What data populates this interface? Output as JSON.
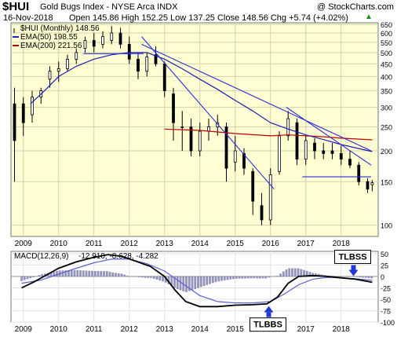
{
  "header": {
    "symbol": "$HUI",
    "name": "Gold Bugs Index - NYSE Arca INDX",
    "source": "@ StockCharts.com",
    "date": "16-Nov-2018",
    "quote": "Open 145.86  High 152.25  Low 137.25  Close 148.56  Chg +5.74 (+4.02%)",
    "up_arrow": "▲"
  },
  "colors": {
    "plot_bg": "#fefed2",
    "candle": "#000000",
    "ema50": "#2020b0",
    "ema200": "#c00000",
    "trendline": "#2b2bd8",
    "macd": "#000000",
    "signal": "#6060d0",
    "histogram": "#8080b0",
    "annotation_arrow": "#1f39d6"
  },
  "chart_data": [
    {
      "type": "candlestick",
      "scale": "log",
      "ylim": [
        90,
        660
      ],
      "y_ticks": [
        650,
        600,
        550,
        500,
        450,
        400,
        350,
        300,
        250,
        200,
        150,
        100
      ],
      "x_labels": [
        "2009",
        "2010",
        "2011",
        "2012",
        "2013",
        "2014",
        "2015",
        "2016",
        "2017",
        "2018"
      ],
      "grid": true,
      "legend": [
        {
          "label": "$HUI (Monthly) 148.56",
          "marker": "candle"
        },
        {
          "label": "EMA(50) 198.55",
          "color": "#2020b0"
        },
        {
          "label": "EMA(200) 221.56",
          "color": "#c00000"
        }
      ],
      "candles_approx": [
        {
          "t": 2008.75,
          "open": 310,
          "high": 360,
          "low": 150,
          "close": 220
        },
        {
          "t": 2009.0,
          "open": 310,
          "high": 330,
          "low": 230,
          "close": 260
        },
        {
          "t": 2009.25,
          "open": 280,
          "high": 350,
          "low": 260,
          "close": 330
        },
        {
          "t": 2009.5,
          "open": 330,
          "high": 360,
          "low": 310,
          "close": 350
        },
        {
          "t": 2009.75,
          "open": 390,
          "high": 440,
          "low": 360,
          "close": 420
        },
        {
          "t": 2010.0,
          "open": 420,
          "high": 460,
          "low": 380,
          "close": 430
        },
        {
          "t": 2010.25,
          "open": 430,
          "high": 490,
          "low": 420,
          "close": 470
        },
        {
          "t": 2010.5,
          "open": 470,
          "high": 520,
          "low": 450,
          "close": 500
        },
        {
          "t": 2010.75,
          "open": 520,
          "high": 580,
          "low": 500,
          "close": 560
        },
        {
          "t": 2011.0,
          "open": 560,
          "high": 600,
          "low": 500,
          "close": 530
        },
        {
          "t": 2011.25,
          "open": 540,
          "high": 610,
          "low": 520,
          "close": 580
        },
        {
          "t": 2011.5,
          "open": 560,
          "high": 640,
          "low": 540,
          "close": 600
        },
        {
          "t": 2011.75,
          "open": 600,
          "high": 630,
          "low": 520,
          "close": 540
        },
        {
          "t": 2012.0,
          "open": 540,
          "high": 580,
          "low": 450,
          "close": 470
        },
        {
          "t": 2012.25,
          "open": 470,
          "high": 500,
          "low": 390,
          "close": 420
        },
        {
          "t": 2012.5,
          "open": 420,
          "high": 500,
          "low": 400,
          "close": 480
        },
        {
          "t": 2012.75,
          "open": 490,
          "high": 530,
          "low": 440,
          "close": 450
        },
        {
          "t": 2013.0,
          "open": 450,
          "high": 460,
          "low": 330,
          "close": 350
        },
        {
          "t": 2013.25,
          "open": 340,
          "high": 360,
          "low": 220,
          "close": 260
        },
        {
          "t": 2013.5,
          "open": 250,
          "high": 290,
          "low": 200,
          "close": 250
        },
        {
          "t": 2013.75,
          "open": 250,
          "high": 270,
          "low": 190,
          "close": 200
        },
        {
          "t": 2014.0,
          "open": 200,
          "high": 260,
          "low": 190,
          "close": 240
        },
        {
          "t": 2014.25,
          "open": 240,
          "high": 270,
          "low": 220,
          "close": 250
        },
        {
          "t": 2014.5,
          "open": 250,
          "high": 280,
          "low": 230,
          "close": 260
        },
        {
          "t": 2014.75,
          "open": 250,
          "high": 260,
          "low": 150,
          "close": 170
        },
        {
          "t": 2015.0,
          "open": 180,
          "high": 230,
          "low": 165,
          "close": 200
        },
        {
          "t": 2015.25,
          "open": 195,
          "high": 205,
          "low": 160,
          "close": 170
        },
        {
          "t": 2015.5,
          "open": 165,
          "high": 170,
          "low": 110,
          "close": 125
        },
        {
          "t": 2015.75,
          "open": 120,
          "high": 135,
          "low": 100,
          "close": 105
        },
        {
          "t": 2016.0,
          "open": 105,
          "high": 170,
          "low": 100,
          "close": 160
        },
        {
          "t": 2016.25,
          "open": 165,
          "high": 240,
          "low": 160,
          "close": 230
        },
        {
          "t": 2016.5,
          "open": 230,
          "high": 290,
          "low": 220,
          "close": 270
        },
        {
          "t": 2016.75,
          "open": 260,
          "high": 270,
          "low": 175,
          "close": 185
        },
        {
          "t": 2017.0,
          "open": 185,
          "high": 230,
          "low": 175,
          "close": 220
        },
        {
          "t": 2017.25,
          "open": 215,
          "high": 225,
          "low": 185,
          "close": 200
        },
        {
          "t": 2017.5,
          "open": 200,
          "high": 215,
          "low": 185,
          "close": 195
        },
        {
          "t": 2017.75,
          "open": 200,
          "high": 215,
          "low": 185,
          "close": 195
        },
        {
          "t": 2018.0,
          "open": 195,
          "high": 210,
          "low": 175,
          "close": 185
        },
        {
          "t": 2018.25,
          "open": 185,
          "high": 200,
          "low": 170,
          "close": 175
        },
        {
          "t": 2018.5,
          "open": 175,
          "high": 180,
          "low": 145,
          "close": 150
        },
        {
          "t": 2018.75,
          "open": 150,
          "high": 155,
          "low": 135,
          "close": 140
        },
        {
          "t": 2018.88,
          "open": 145.86,
          "high": 152.25,
          "low": 137.25,
          "close": 148.56
        }
      ],
      "ema50_approx": [
        [
          2009.2,
          310
        ],
        [
          2009.6,
          350
        ],
        [
          2010.0,
          400
        ],
        [
          2010.5,
          440
        ],
        [
          2011.0,
          470
        ],
        [
          2011.5,
          490
        ],
        [
          2012.0,
          500
        ],
        [
          2012.5,
          500
        ],
        [
          2013.0,
          470
        ],
        [
          2013.5,
          430
        ],
        [
          2014.0,
          390
        ],
        [
          2014.5,
          355
        ],
        [
          2015.0,
          320
        ],
        [
          2015.5,
          290
        ],
        [
          2016.0,
          260
        ],
        [
          2016.5,
          245
        ],
        [
          2017.0,
          232
        ],
        [
          2017.5,
          222
        ],
        [
          2018.0,
          212
        ],
        [
          2018.88,
          198.55
        ]
      ],
      "ema200_approx": [
        [
          2013.0,
          245
        ],
        [
          2014.0,
          242
        ],
        [
          2015.0,
          235
        ],
        [
          2016.0,
          230
        ],
        [
          2016.5,
          232
        ],
        [
          2017.0,
          230
        ],
        [
          2017.5,
          228
        ],
        [
          2018.0,
          225
        ],
        [
          2018.88,
          221.56
        ]
      ],
      "trendlines_approx": [
        {
          "from": [
            2010.7,
            495
          ],
          "to": [
            2012.4,
            495
          ]
        },
        {
          "from": [
            2012.35,
            580
          ],
          "to": [
            2016.1,
            140
          ]
        },
        {
          "from": [
            2012.35,
            540
          ],
          "to": [
            2018.85,
            200
          ]
        },
        {
          "from": [
            2016.45,
            300
          ],
          "to": [
            2018.85,
            175
          ]
        },
        {
          "from": [
            2016.9,
            157
          ],
          "to": [
            2018.85,
            157
          ]
        }
      ]
    },
    {
      "type": "line",
      "title": "MACD(12,26,9)",
      "values_label": "-12.910, -8.628, -4.282",
      "macd_value": -12.91,
      "signal_value": -8.628,
      "histogram_value": -4.282,
      "ylim": [
        -100,
        55
      ],
      "y_ticks": [
        50,
        25,
        0,
        -25,
        -50,
        -75,
        -100
      ],
      "x_labels": [
        "2009",
        "2010",
        "2011",
        "2012",
        "2013",
        "2014",
        "2015",
        "2016",
        "2017",
        "2018"
      ],
      "macd_approx": [
        [
          2008.95,
          -25
        ],
        [
          2009.3,
          -12
        ],
        [
          2009.7,
          5
        ],
        [
          2010.0,
          18
        ],
        [
          2010.5,
          32
        ],
        [
          2011.0,
          42
        ],
        [
          2011.4,
          48
        ],
        [
          2011.8,
          44
        ],
        [
          2012.2,
          33
        ],
        [
          2012.6,
          22
        ],
        [
          2013.0,
          0
        ],
        [
          2013.3,
          -30
        ],
        [
          2013.6,
          -55
        ],
        [
          2014.0,
          -66
        ],
        [
          2014.5,
          -66
        ],
        [
          2015.0,
          -63
        ],
        [
          2015.5,
          -62
        ],
        [
          2015.9,
          -60
        ],
        [
          2016.2,
          -45
        ],
        [
          2016.5,
          -15
        ],
        [
          2016.8,
          0
        ],
        [
          2017.2,
          2
        ],
        [
          2017.6,
          0
        ],
        [
          2018.0,
          -3
        ],
        [
          2018.4,
          -6
        ],
        [
          2018.88,
          -12.91
        ]
      ],
      "signal_approx": [
        [
          2008.95,
          -15
        ],
        [
          2009.5,
          -8
        ],
        [
          2010.0,
          5
        ],
        [
          2010.5,
          18
        ],
        [
          2011.0,
          30
        ],
        [
          2011.5,
          38
        ],
        [
          2012.0,
          38
        ],
        [
          2012.5,
          28
        ],
        [
          2013.0,
          12
        ],
        [
          2013.5,
          -15
        ],
        [
          2014.0,
          -42
        ],
        [
          2014.5,
          -55
        ],
        [
          2015.0,
          -58
        ],
        [
          2015.5,
          -58
        ],
        [
          2016.0,
          -55
        ],
        [
          2016.4,
          -38
        ],
        [
          2016.8,
          -18
        ],
        [
          2017.2,
          -6
        ],
        [
          2017.6,
          -2
        ],
        [
          2018.0,
          -3
        ],
        [
          2018.4,
          -5
        ],
        [
          2018.88,
          -8.628
        ]
      ],
      "annotations": [
        {
          "text": "TLBBS",
          "t": 2015.95,
          "value": -65,
          "arrow": "up"
        },
        {
          "text": "TLBSS",
          "t": 2018.35,
          "value": -1,
          "arrow": "down"
        }
      ]
    }
  ]
}
